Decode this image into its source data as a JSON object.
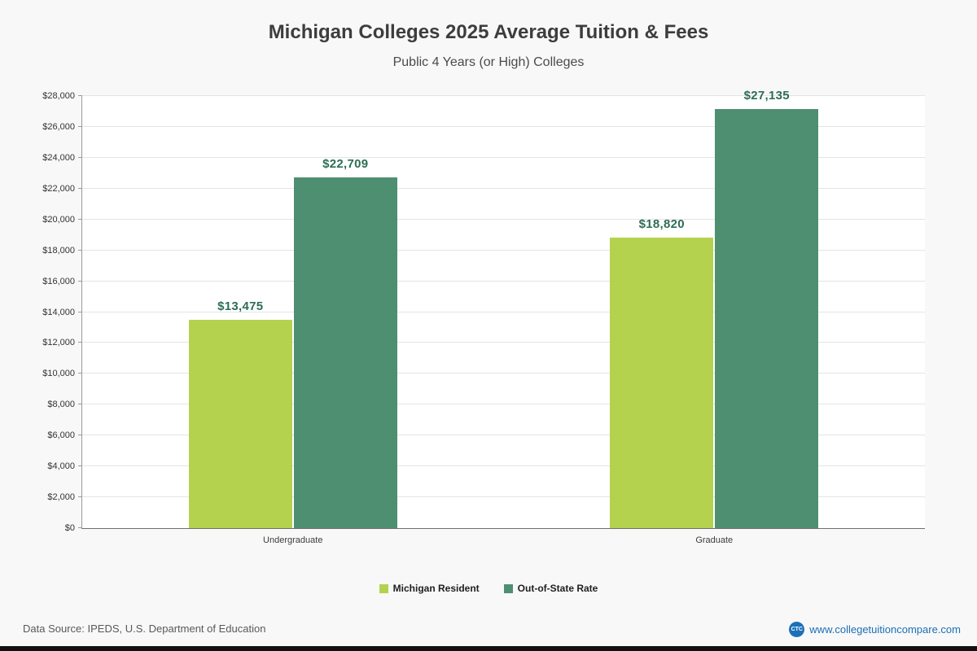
{
  "page": {
    "title": "Michigan Colleges 2025 Average Tuition & Fees",
    "subtitle": "Public 4 Years (or High)  Colleges",
    "footer": {
      "source": "Data Source: IPEDS, U.S. Department of Education",
      "site": "www.collegetuitioncompare.com",
      "logo_text": "CTC"
    }
  },
  "chart_data": {
    "type": "bar",
    "title": "Michigan Colleges 2025 Average Tuition & Fees",
    "subtitle": "Public 4 Years (or High) Colleges",
    "categories": [
      "Undergraduate",
      "Graduate"
    ],
    "series": [
      {
        "name": "Michigan Resident",
        "color": "#b4d24d",
        "values": [
          13475,
          18820
        ]
      },
      {
        "name": "Out-of-State Rate",
        "color": "#4e8f72",
        "values": [
          22709,
          27135
        ]
      }
    ],
    "data_labels": [
      "$13,475",
      "$22,709",
      "$18,820",
      "$27,135"
    ],
    "ylim": [
      0,
      28000
    ],
    "ytick_step": 2000,
    "ytick_format": "$#,##0",
    "grid": true,
    "legend_position": "bottom",
    "label_color": "#2c6e54"
  }
}
